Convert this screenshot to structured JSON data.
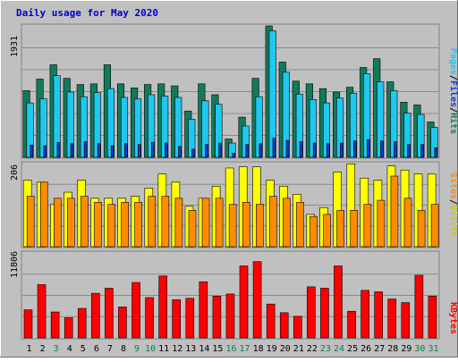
{
  "title": "Daily usage for May 2020",
  "colors": {
    "background": "#C0C0C0",
    "title": "#0000CC",
    "hits": "#127A5C",
    "files": "#1EC8F0",
    "pages": "#0C3FD0",
    "visits": "#FFFF00",
    "sites": "#FF8C00",
    "kbytes": "#FF0000",
    "weekend_label": "#0F7E4F",
    "weekday_label": "#000000"
  },
  "chart_data": [
    {
      "type": "bar",
      "panel": "hits-files-pages",
      "ylabel_max": "1931",
      "legend": [
        "Pages",
        "/",
        "Files",
        "/",
        "Hits"
      ],
      "x": [
        "1",
        "2",
        "3",
        "4",
        "5",
        "6",
        "7",
        "8",
        "9",
        "10",
        "11",
        "12",
        "13",
        "14",
        "15",
        "16",
        "17",
        "18",
        "19",
        "20",
        "21",
        "22",
        "23",
        "24",
        "25",
        "26",
        "27",
        "28",
        "29",
        "30",
        "31"
      ],
      "series": [
        {
          "name": "Hits",
          "values": [
            980,
            1150,
            1360,
            1160,
            1070,
            1080,
            1360,
            1080,
            1020,
            1070,
            1080,
            1050,
            680,
            1080,
            920,
            270,
            590,
            1160,
            1931,
            1400,
            1120,
            1080,
            1010,
            960,
            1030,
            1320,
            1450,
            1110,
            810,
            770,
            520
          ]
        },
        {
          "name": "Files",
          "values": [
            800,
            860,
            1200,
            960,
            890,
            950,
            1010,
            880,
            860,
            920,
            900,
            880,
            560,
            830,
            780,
            210,
            460,
            890,
            1860,
            1250,
            930,
            850,
            800,
            870,
            940,
            1230,
            1110,
            980,
            650,
            630,
            440
          ]
        },
        {
          "name": "Pages",
          "values": [
            180,
            170,
            220,
            200,
            230,
            200,
            170,
            200,
            190,
            220,
            210,
            160,
            120,
            190,
            210,
            60,
            190,
            200,
            280,
            250,
            230,
            210,
            200,
            210,
            240,
            260,
            240,
            230,
            190,
            190,
            140
          ]
        }
      ]
    },
    {
      "type": "bar",
      "panel": "visits-sites",
      "ylabel_max": "206",
      "legend": [
        "Sites",
        "/",
        "Visits"
      ],
      "x": [
        "1",
        "2",
        "3",
        "4",
        "5",
        "6",
        "7",
        "8",
        "9",
        "10",
        "11",
        "12",
        "13",
        "14",
        "15",
        "16",
        "17",
        "18",
        "19",
        "20",
        "21",
        "22",
        "23",
        "24",
        "25",
        "26",
        "27",
        "28",
        "29",
        "30",
        "31"
      ],
      "series": [
        {
          "name": "Visits",
          "values": [
            165,
            160,
            105,
            135,
            165,
            120,
            120,
            120,
            125,
            145,
            180,
            160,
            100,
            120,
            150,
            195,
            198,
            198,
            165,
            150,
            130,
            80,
            97,
            185,
            205,
            170,
            165,
            200,
            190,
            180,
            180
          ]
        },
        {
          "name": "Sites",
          "values": [
            125,
            160,
            120,
            120,
            125,
            110,
            105,
            110,
            110,
            125,
            125,
            120,
            90,
            120,
            120,
            105,
            110,
            105,
            125,
            120,
            110,
            75,
            80,
            90,
            90,
            105,
            115,
            175,
            120,
            90,
            105
          ]
        }
      ]
    },
    {
      "type": "bar",
      "panel": "kbytes",
      "ylabel_max": "11806",
      "legend": [
        "KBytes"
      ],
      "x": [
        "1",
        "2",
        "3",
        "4",
        "5",
        "6",
        "7",
        "8",
        "9",
        "10",
        "11",
        "12",
        "13",
        "14",
        "15",
        "16",
        "17",
        "18",
        "19",
        "20",
        "21",
        "22",
        "23",
        "24",
        "25",
        "26",
        "27",
        "28",
        "29",
        "30",
        "31"
      ],
      "series": [
        {
          "name": "KBytes",
          "values": [
            3900,
            7400,
            3600,
            2800,
            4100,
            6200,
            6900,
            4300,
            7700,
            5600,
            8600,
            5300,
            5500,
            7800,
            5800,
            6100,
            10000,
            10600,
            4700,
            3500,
            3000,
            7100,
            6900,
            10000,
            3700,
            6600,
            6400,
            5400,
            4900,
            8700,
            5800
          ]
        }
      ]
    }
  ],
  "x_labels": [
    {
      "text": "1",
      "weekend": false
    },
    {
      "text": "2",
      "weekend": false
    },
    {
      "text": "3",
      "weekend": true
    },
    {
      "text": "4",
      "weekend": false
    },
    {
      "text": "5",
      "weekend": false
    },
    {
      "text": "6",
      "weekend": false
    },
    {
      "text": "7",
      "weekend": false
    },
    {
      "text": "8",
      "weekend": false
    },
    {
      "text": "9",
      "weekend": true
    },
    {
      "text": "10",
      "weekend": true
    },
    {
      "text": "11",
      "weekend": false
    },
    {
      "text": "12",
      "weekend": false
    },
    {
      "text": "13",
      "weekend": false
    },
    {
      "text": "14",
      "weekend": false
    },
    {
      "text": "15",
      "weekend": false
    },
    {
      "text": "16",
      "weekend": true
    },
    {
      "text": "17",
      "weekend": true
    },
    {
      "text": "18",
      "weekend": false
    },
    {
      "text": "19",
      "weekend": false
    },
    {
      "text": "20",
      "weekend": false
    },
    {
      "text": "21",
      "weekend": false
    },
    {
      "text": "22",
      "weekend": false
    },
    {
      "text": "23",
      "weekend": true
    },
    {
      "text": "24",
      "weekend": true
    },
    {
      "text": "25",
      "weekend": false
    },
    {
      "text": "26",
      "weekend": false
    },
    {
      "text": "27",
      "weekend": false
    },
    {
      "text": "28",
      "weekend": false
    },
    {
      "text": "29",
      "weekend": false
    },
    {
      "text": "30",
      "weekend": true
    },
    {
      "text": "31",
      "weekend": true
    }
  ]
}
